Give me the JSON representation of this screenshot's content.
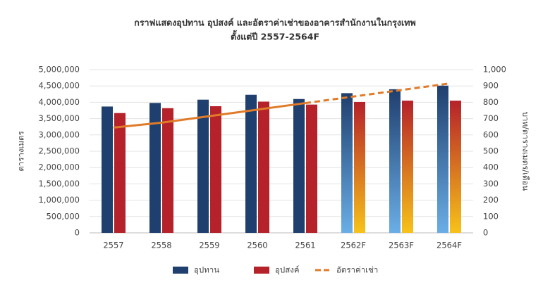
{
  "chart_data": {
    "type": "bar_line",
    "title": "กราฟแสดงอุปทาน อุปสงค์ และอัตราค่าเช่าของอาคารสำนักงานในกรุงเทพ",
    "subtitle": "ตั้งแต่ปี 2557-2564F",
    "y_label": "ตารางเมตร",
    "y2_label": "บาท/ตารางเมตร/เดือน",
    "categories": [
      "2557",
      "2558",
      "2559",
      "2560",
      "2561",
      "2562F",
      "2563F",
      "2564F"
    ],
    "series": [
      {
        "name": "อุปทาน",
        "color": "#1f3f6e",
        "type": "bar",
        "values": [
          3870000,
          3980000,
          4080000,
          4230000,
          4100000,
          4280000,
          4400000,
          4510000
        ]
      },
      {
        "name": "อุปสงค์",
        "color": "#b5222a",
        "type": "bar",
        "values": [
          3670000,
          3820000,
          3880000,
          4020000,
          3930000,
          4010000,
          4050000,
          4050000
        ]
      },
      {
        "name": "อัตราค่าเช่า",
        "color": "#e07b2a",
        "type": "line",
        "axis": "y2",
        "values": [
          645,
          675,
          715,
          755,
          795,
          835,
          875,
          915
        ]
      }
    ],
    "ylim": [
      0,
      5000000
    ],
    "yticks": [
      0,
      {
        "value": 500000,
        "label": "500,000"
      },
      {
        "value": 1000000,
        "label": "1,000,000"
      },
      {
        "value": 1500000,
        "label": "1,500,000"
      },
      {
        "value": 2000000,
        "label": "2,000,000"
      },
      {
        "value": 2500000,
        "label": "2,500,000"
      },
      {
        "value": 3000000,
        "label": "3,000,000"
      },
      {
        "value": 3500000,
        "label": "3,500,000"
      },
      {
        "value": 4000000,
        "label": "4,000,000"
      },
      {
        "value": 4500000,
        "label": "4,500,000"
      },
      {
        "value": 5000000,
        "label": "5,000,000"
      }
    ],
    "y2lim": [
      0,
      1000
    ],
    "y2ticks": [
      0,
      100,
      200,
      300,
      400,
      500,
      600,
      700,
      800,
      900,
      {
        "value": 1000,
        "label": "1,000"
      }
    ],
    "grid": true
  }
}
